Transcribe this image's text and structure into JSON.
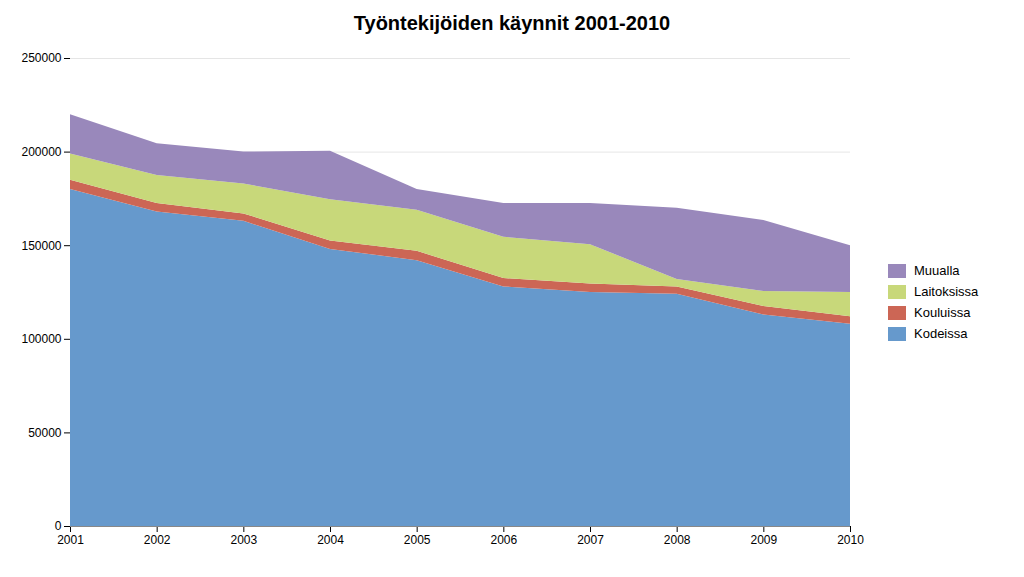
{
  "chart_data": {
    "type": "area",
    "stacked": true,
    "title": "Työntekijöiden käynnit 2001-2010",
    "x": [
      2001,
      2002,
      2003,
      2004,
      2005,
      2006,
      2007,
      2008,
      2009,
      2010
    ],
    "series": [
      {
        "name": "Kodeissa",
        "color": "#6699cc",
        "values": [
          180000,
          168000,
          163000,
          148000,
          142000,
          128000,
          125000,
          124000,
          113000,
          108000
        ]
      },
      {
        "name": "Kouluissa",
        "color": "#cc6655",
        "values": [
          5000,
          4500,
          4000,
          4500,
          5000,
          4500,
          4500,
          4000,
          4500,
          4000
        ]
      },
      {
        "name": "Laitoksissa",
        "color": "#c8d87a",
        "values": [
          14000,
          15000,
          16000,
          22000,
          22000,
          22000,
          21000,
          4000,
          8000,
          13000
        ]
      },
      {
        "name": "Muualla",
        "color": "#9988bb",
        "values": [
          21000,
          17000,
          17000,
          26000,
          11000,
          18000,
          22000,
          38000,
          38000,
          25000
        ]
      }
    ],
    "xlim": [
      2001,
      2010
    ],
    "xticks": [
      2001,
      2002,
      2003,
      2004,
      2005,
      2006,
      2007,
      2008,
      2009,
      2010
    ],
    "ylim": [
      0,
      250000
    ],
    "yticks": [
      0,
      50000,
      100000,
      150000,
      200000,
      250000
    ],
    "grid": true,
    "legend": "right"
  }
}
